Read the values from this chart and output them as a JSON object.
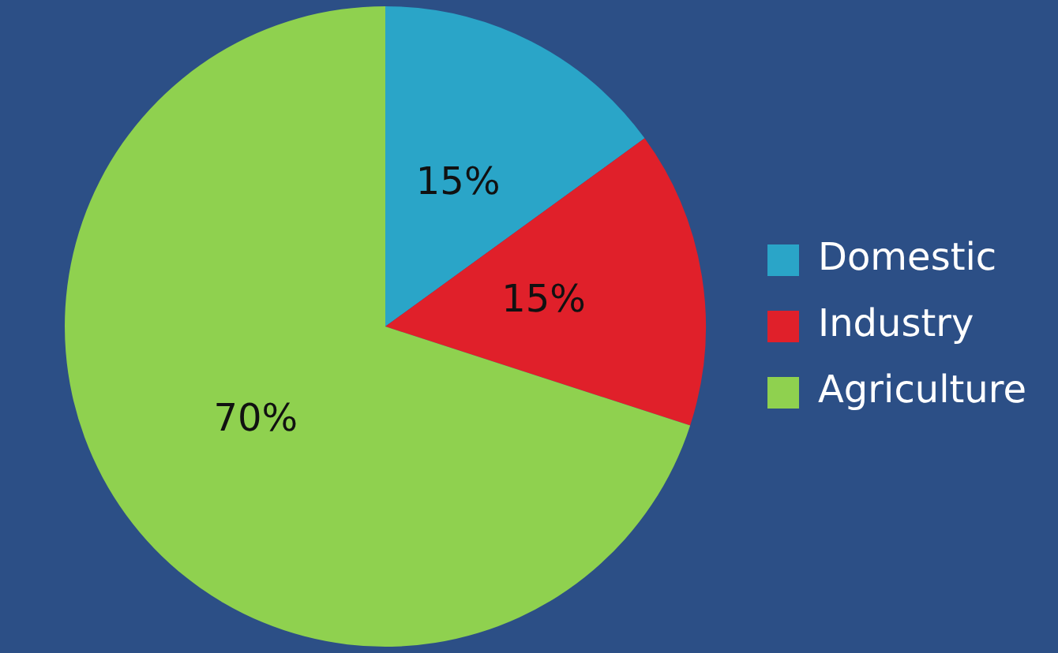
{
  "chart_data": {
    "type": "pie",
    "categories": [
      "Domestic",
      "Industry",
      "Agriculture"
    ],
    "values": [
      15,
      15,
      70
    ],
    "colors": [
      "#2aa5c8",
      "#e0202a",
      "#8fd14f"
    ],
    "value_labels": [
      "15%",
      "15%",
      "70%"
    ],
    "legend": "right"
  }
}
